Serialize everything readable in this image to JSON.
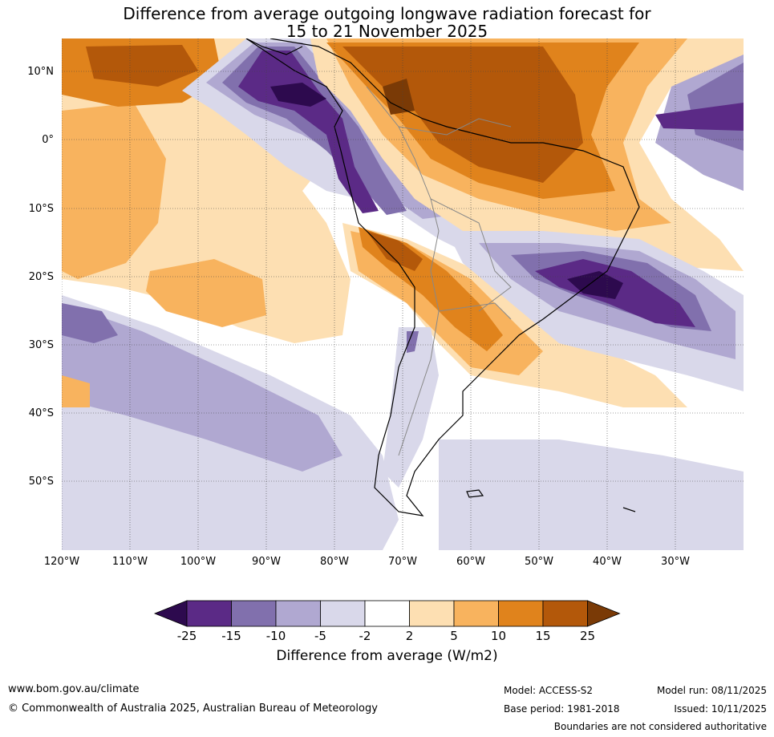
{
  "title_line1": "Difference from average outgoing longwave radiation forecast for",
  "title_line2": "15 to 21 November 2025",
  "lat_labels": [
    "10°N",
    "0°",
    "10°S",
    "20°S",
    "30°S",
    "40°S",
    "50°S"
  ],
  "lon_labels": [
    "120°W",
    "110°W",
    "100°W",
    "90°W",
    "80°W",
    "70°W",
    "60°W",
    "50°W",
    "40°W",
    "30°W"
  ],
  "colorbar": {
    "title": "Difference from average (W/m2)",
    "ticks": [
      "-25",
      "-15",
      "-10",
      "-5",
      "-2",
      "2",
      "5",
      "10",
      "15",
      "25"
    ],
    "colors": [
      "#2d0a4e",
      "#5b2a86",
      "#8170ad",
      "#b0a8d1",
      "#d9d8ea",
      "#ffffff",
      "#fddfb2",
      "#f8b35e",
      "#e0831c",
      "#b3580a",
      "#7a3a06"
    ]
  },
  "footer": {
    "website": "www.bom.gov.au/climate",
    "copyright": "© Commonwealth of Australia 2025, Australian Bureau of Meteorology",
    "model": "Model: ACCESS-S2",
    "model_run": "Model run: 08/11/2025",
    "base_period": "Base period: 1981-2018",
    "issued": "Issued: 10/11/2025",
    "disclaimer": "Boundaries are not considered authoritative"
  }
}
